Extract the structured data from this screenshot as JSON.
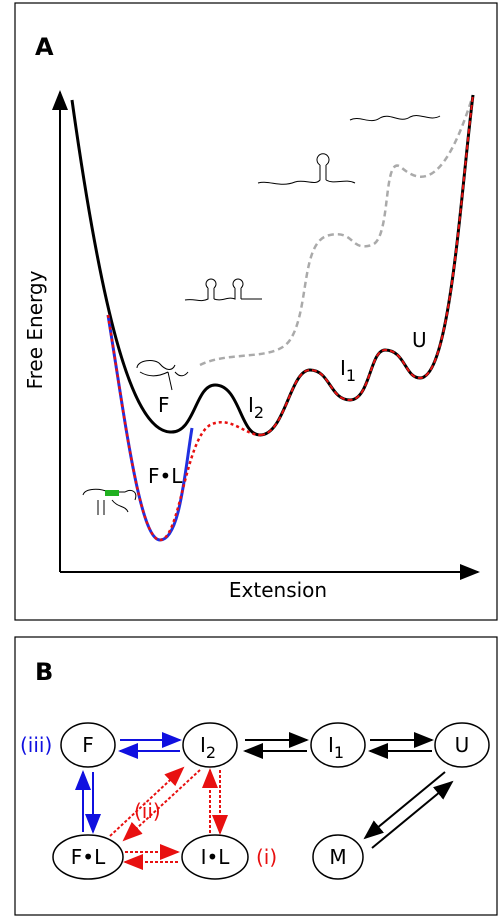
{
  "panel_a": {
    "label": "A",
    "y_axis_label": "Free Energy",
    "x_axis_label": "Extension",
    "states": [
      {
        "text": "F"
      },
      {
        "text": "F•L"
      },
      {
        "text": "I",
        "sub": "2"
      },
      {
        "text": "I",
        "sub": "1"
      },
      {
        "text": "U"
      }
    ]
  },
  "panel_b": {
    "label": "B",
    "nodes": [
      {
        "text": "F"
      },
      {
        "text": "I",
        "sub": "2"
      },
      {
        "text": "I",
        "sub": "1"
      },
      {
        "text": "U"
      },
      {
        "text": "F•L"
      },
      {
        "text": "I•L"
      },
      {
        "text": "M"
      }
    ],
    "pathway_labels": [
      "(iii)",
      "(ii)",
      "(i)"
    ]
  }
}
